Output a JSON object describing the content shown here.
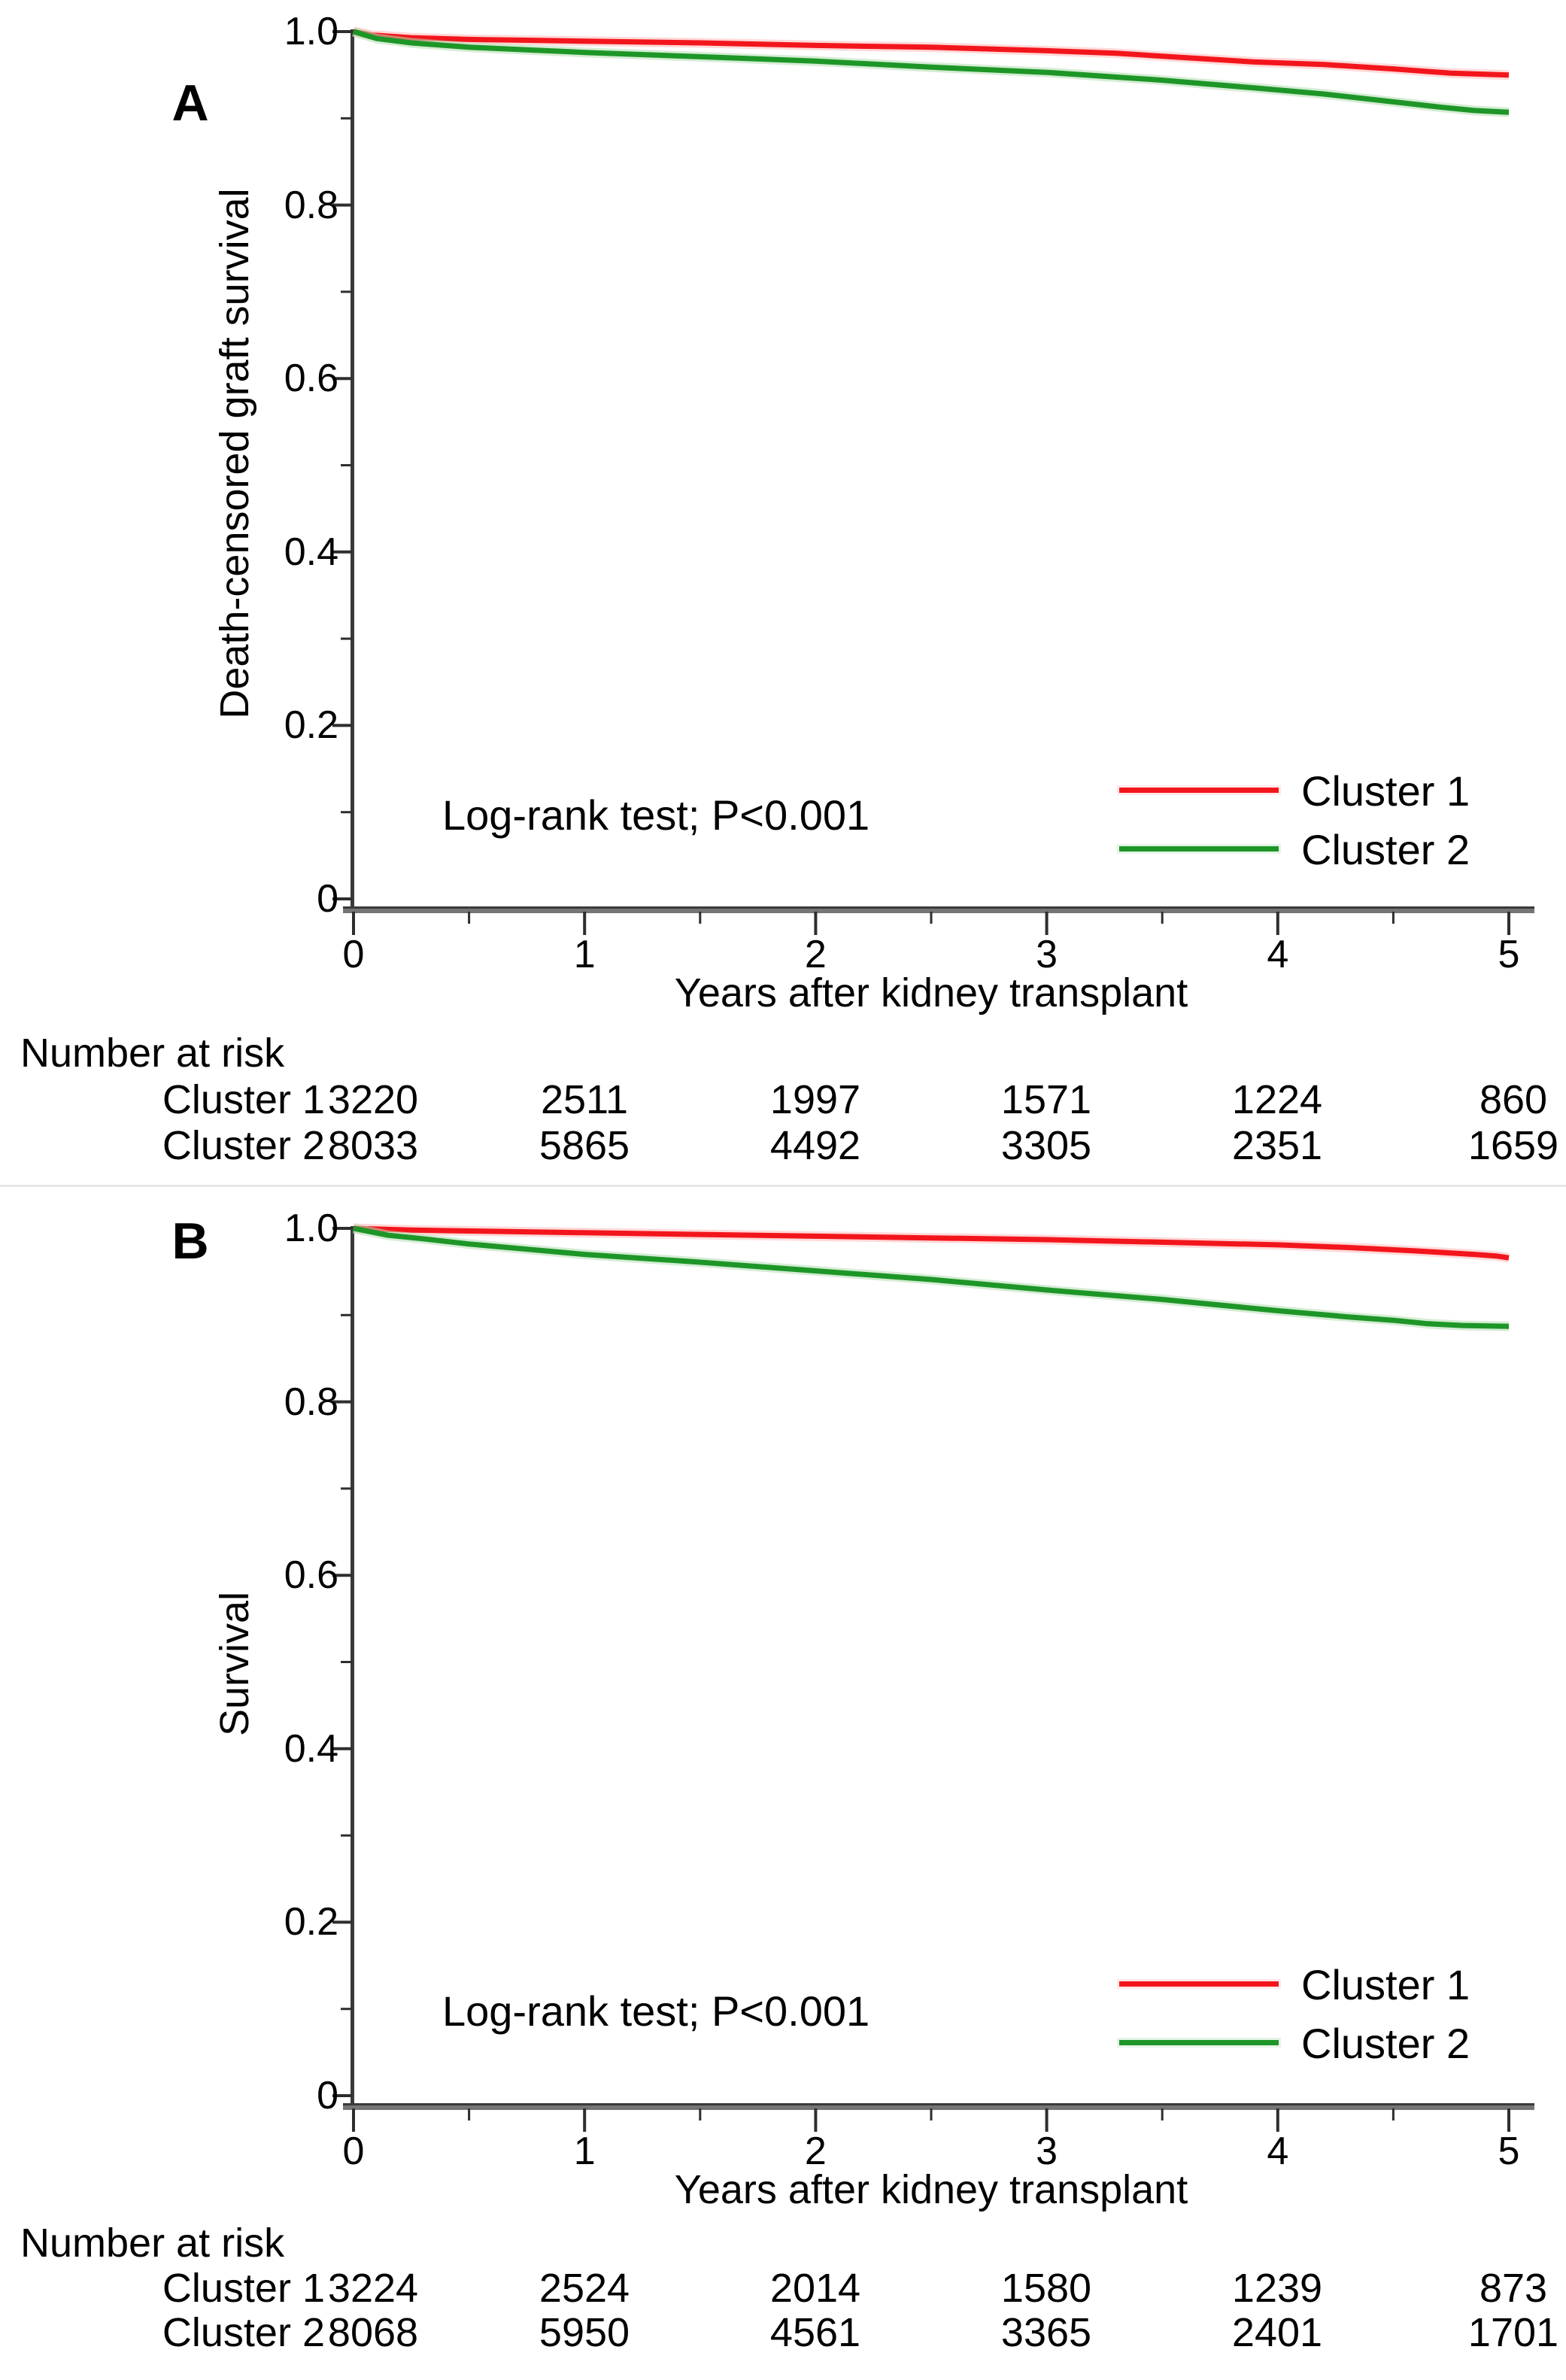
{
  "figure": {
    "colors": {
      "cluster1": "#f2161c",
      "cluster1_halo": "#ffb9b9",
      "cluster2": "#1d9627",
      "cluster2_halo": "#b2dcb0",
      "axis_line": "#3a3a3a",
      "axis_bar": "#757575",
      "tick": "#2e2e2e",
      "text": "#000000"
    },
    "panels": [
      {
        "label": "A",
        "y_axis": {
          "title": "Death-censored graft survival",
          "tick_labels": [
            "1.0",
            "0.8",
            "0.6",
            "0.4",
            "0.2",
            "0"
          ],
          "tick_values": [
            1.0,
            0.8,
            0.6,
            0.4,
            0.2,
            0
          ],
          "minor_tick_values": [
            0.9,
            0.7,
            0.5,
            0.3,
            0.1
          ]
        },
        "x_axis": {
          "title": "Years after kidney transplant",
          "tick_labels": [
            "0",
            "1",
            "2",
            "3",
            "4",
            "5"
          ],
          "tick_values": [
            0,
            1,
            2,
            3,
            4,
            5
          ],
          "minor_tick_values": [
            0.5,
            1.5,
            2.5,
            3.5,
            4.5
          ]
        },
        "annotation": "Log-rank test; P<0.001",
        "legend": [
          {
            "label": "Cluster 1"
          },
          {
            "label": "Cluster 2"
          }
        ],
        "risk_table": {
          "title": "Number at risk",
          "rows": [
            {
              "label": "Cluster 1",
              "counts": [
                "3220",
                "2511",
                "1997",
                "1571",
                "1224",
                "860"
              ]
            },
            {
              "label": "Cluster 2",
              "counts": [
                "8033",
                "5865",
                "4492",
                "3305",
                "2351",
                "1659"
              ]
            }
          ]
        }
      },
      {
        "label": "B",
        "y_axis": {
          "title": "Survival",
          "tick_labels": [
            "1.0",
            "0.8",
            "0.6",
            "0.4",
            "0.2",
            "0"
          ],
          "tick_values": [
            1.0,
            0.8,
            0.6,
            0.4,
            0.2,
            0
          ],
          "minor_tick_values": [
            0.9,
            0.7,
            0.5,
            0.3,
            0.1
          ]
        },
        "x_axis": {
          "title": "Years after kidney transplant",
          "tick_labels": [
            "0",
            "1",
            "2",
            "3",
            "4",
            "5"
          ],
          "tick_values": [
            0,
            1,
            2,
            3,
            4,
            5
          ],
          "minor_tick_values": [
            0.5,
            1.5,
            2.5,
            3.5,
            4.5
          ]
        },
        "annotation": "Log-rank test; P<0.001",
        "legend": [
          {
            "label": "Cluster 1"
          },
          {
            "label": "Cluster 2"
          }
        ],
        "risk_table": {
          "title": "Number at risk",
          "rows": [
            {
              "label": "Cluster 1",
              "counts": [
                "3224",
                "2524",
                "2014",
                "1580",
                "1239",
                "873"
              ]
            },
            {
              "label": "Cluster 2",
              "counts": [
                "8068",
                "5950",
                "4561",
                "3365",
                "2401",
                "1701"
              ]
            }
          ]
        }
      }
    ]
  },
  "chart_data": [
    {
      "type": "line",
      "title": "A",
      "subtitle": "Kaplan-Meier death-censored graft survival by cluster",
      "xlabel": "Years after kidney transplant",
      "ylabel": "Death-censored graft survival",
      "xlim": [
        0,
        5
      ],
      "ylim": [
        0,
        1.0
      ],
      "xticks": [
        0,
        1,
        2,
        3,
        4,
        5
      ],
      "yticks": [
        0,
        0.2,
        0.4,
        0.6,
        0.8,
        1.0
      ],
      "grid": false,
      "legend_position": "inside lower right",
      "annotation": "Log-rank test; P<0.001",
      "series": [
        {
          "name": "Cluster 1",
          "color": "#f2161c",
          "x": [
            0,
            0.08,
            0.25,
            0.5,
            0.75,
            1,
            1.5,
            2,
            2.5,
            3,
            3.3,
            3.6,
            3.9,
            4.2,
            4.5,
            4.75,
            5
          ],
          "y": [
            1.0,
            0.996,
            0.993,
            0.991,
            0.99,
            0.989,
            0.987,
            0.984,
            0.982,
            0.978,
            0.975,
            0.97,
            0.965,
            0.962,
            0.957,
            0.952,
            0.95
          ]
        },
        {
          "name": "Cluster 2",
          "color": "#1d9627",
          "x": [
            0,
            0.1,
            0.25,
            0.5,
            0.75,
            1,
            1.5,
            2,
            2.5,
            3,
            3.5,
            3.9,
            4.2,
            4.5,
            4.7,
            4.85,
            5
          ],
          "y": [
            1.0,
            0.992,
            0.987,
            0.982,
            0.979,
            0.976,
            0.971,
            0.966,
            0.959,
            0.953,
            0.944,
            0.935,
            0.928,
            0.919,
            0.913,
            0.909,
            0.907
          ]
        }
      ],
      "number_at_risk": {
        "times": [
          0,
          1,
          2,
          3,
          4,
          5
        ],
        "Cluster 1": [
          3220,
          2511,
          1997,
          1571,
          1224,
          860
        ],
        "Cluster 2": [
          8033,
          5865,
          4492,
          3305,
          2351,
          1659
        ]
      }
    },
    {
      "type": "line",
      "title": "B",
      "subtitle": "Kaplan-Meier patient survival by cluster",
      "xlabel": "Years after kidney transplant",
      "ylabel": "Survival",
      "xlim": [
        0,
        5
      ],
      "ylim": [
        0,
        1.0
      ],
      "xticks": [
        0,
        1,
        2,
        3,
        4,
        5
      ],
      "yticks": [
        0,
        0.2,
        0.4,
        0.6,
        0.8,
        1.0
      ],
      "grid": false,
      "legend_position": "inside lower right",
      "annotation": "Log-rank test; P<0.001",
      "series": [
        {
          "name": "Cluster 1",
          "color": "#f2161c",
          "x": [
            0,
            0.25,
            0.5,
            1,
            1.5,
            2,
            2.5,
            3,
            3.5,
            4,
            4.3,
            4.6,
            4.85,
            4.95,
            5
          ],
          "y": [
            1.0,
            0.998,
            0.997,
            0.995,
            0.993,
            0.991,
            0.989,
            0.987,
            0.984,
            0.981,
            0.978,
            0.974,
            0.97,
            0.968,
            0.966
          ]
        },
        {
          "name": "Cluster 2",
          "color": "#1d9627",
          "x": [
            0,
            0.15,
            0.3,
            0.5,
            0.75,
            1,
            1.5,
            2,
            2.5,
            3,
            3.5,
            4,
            4.3,
            4.5,
            4.65,
            4.8,
            5
          ],
          "y": [
            1.0,
            0.992,
            0.988,
            0.982,
            0.976,
            0.97,
            0.961,
            0.951,
            0.941,
            0.929,
            0.918,
            0.905,
            0.898,
            0.894,
            0.89,
            0.888,
            0.887
          ]
        }
      ],
      "number_at_risk": {
        "times": [
          0,
          1,
          2,
          3,
          4,
          5
        ],
        "Cluster 1": [
          3224,
          2524,
          2014,
          1580,
          1239,
          873
        ],
        "Cluster 2": [
          8068,
          5950,
          4561,
          3365,
          2401,
          1701
        ]
      }
    }
  ]
}
